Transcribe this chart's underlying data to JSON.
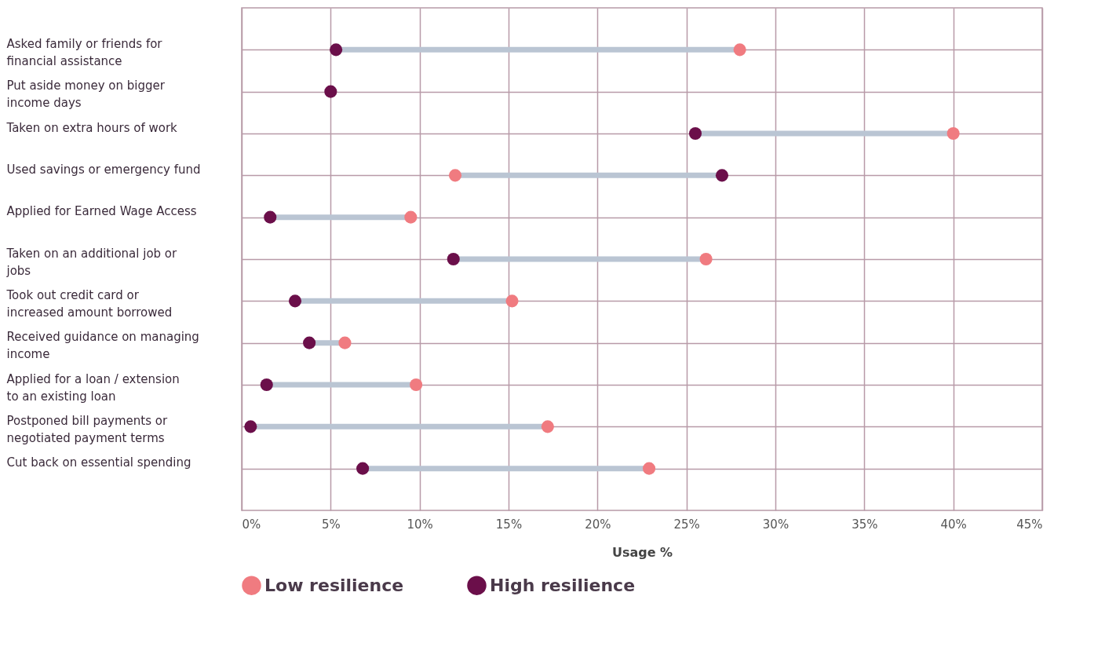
{
  "chart_data": {
    "type": "scatter",
    "orientation": "horizontal",
    "xlabel": "Usage %",
    "categories": [
      "Asked family or friends for financial assistance",
      "Put aside money on bigger income days",
      "Taken on extra hours of work",
      "Used savings or emergency fund",
      "Applied for Earned Wage Access",
      "Taken on an additional job or jobs",
      "Took out credit card or increased amount borrowed",
      "Received guidance on managing income",
      "Applied for a loan / extension to an existing loan",
      "Postponed bill payments or negotiated payment terms",
      "Cut back on essential spending"
    ],
    "series": [
      {
        "name": "Low resilience",
        "color": "#f07b80",
        "values": [
          28,
          null,
          40,
          12,
          9.5,
          26.1,
          15.2,
          5.8,
          9.8,
          17.2,
          22.9
        ]
      },
      {
        "name": "High resilience",
        "color": "#6b0f4a",
        "values": [
          5.3,
          5,
          25.5,
          27,
          1.6,
          11.9,
          3,
          3.8,
          1.4,
          0.5,
          6.8
        ]
      }
    ],
    "xlim": [
      0,
      45
    ],
    "xticks": [
      {
        "value": 0,
        "label": "0%"
      },
      {
        "value": 5,
        "label": "5%"
      },
      {
        "value": 10,
        "label": "10%"
      },
      {
        "value": 15,
        "label": "15%"
      },
      {
        "value": 20,
        "label": "20%"
      },
      {
        "value": 25,
        "label": "25%"
      },
      {
        "value": 30,
        "label": "30%"
      },
      {
        "value": 35,
        "label": "35%"
      },
      {
        "value": 40,
        "label": "40%"
      },
      {
        "value": 45,
        "label": "45%"
      }
    ],
    "grid": true,
    "legend": "bottom",
    "marker": "circle"
  }
}
